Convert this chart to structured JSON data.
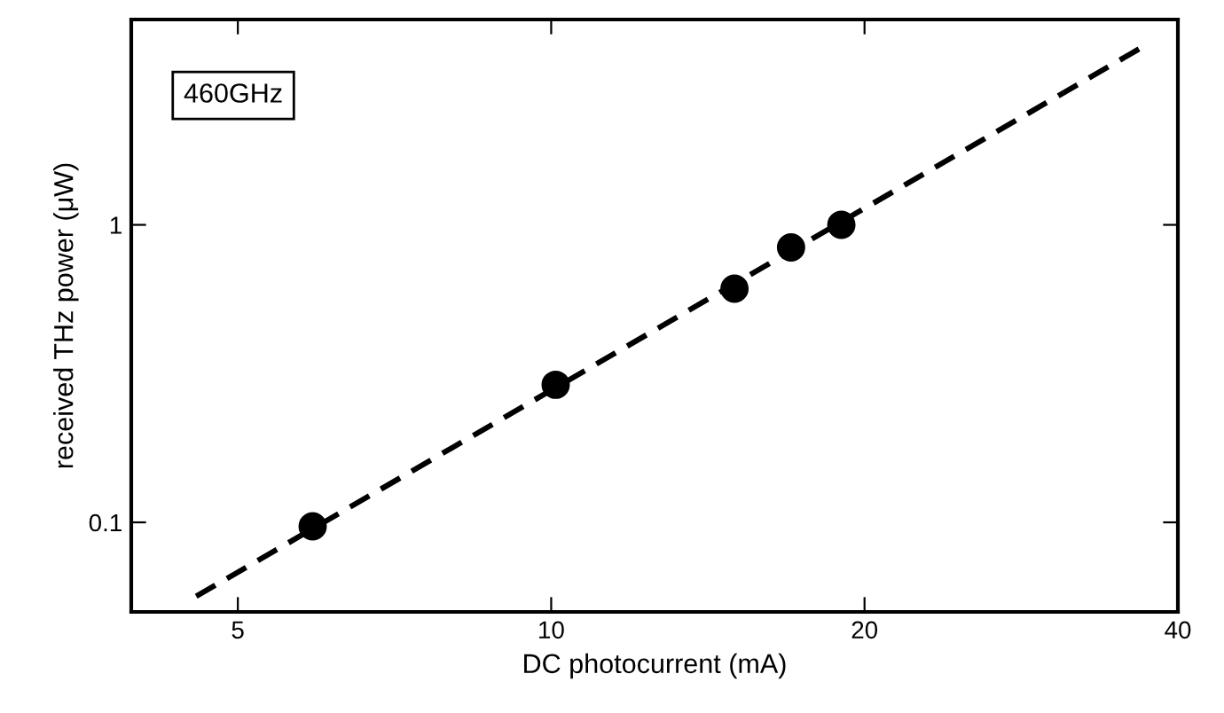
{
  "chart_data": {
    "type": "scatter",
    "xlabel": "DC photocurrent (mA)",
    "ylabel": "received THz power (μW)",
    "log": "xy",
    "xlim": [
      3.95,
      40
    ],
    "ylim": [
      0.05,
      4.9
    ],
    "xticks": [
      5,
      10,
      20,
      40
    ],
    "yticks": [
      0.1,
      1
    ],
    "annotations": [
      "460GHz"
    ],
    "grid": false,
    "legend": false,
    "series": [
      {
        "type": "scatter",
        "color": "#000000",
        "marker": "circle",
        "x": [
          5.9,
          10.1,
          15.0,
          17.0,
          19.0
        ],
        "values": [
          0.097,
          0.29,
          0.61,
          0.84,
          1.0
        ]
      },
      {
        "type": "line",
        "color": "#000000",
        "line_style": "dashed",
        "marker": "none",
        "x": [
          4.56,
          36.7
        ],
        "values": [
          0.0564,
          3.9
        ]
      }
    ]
  }
}
